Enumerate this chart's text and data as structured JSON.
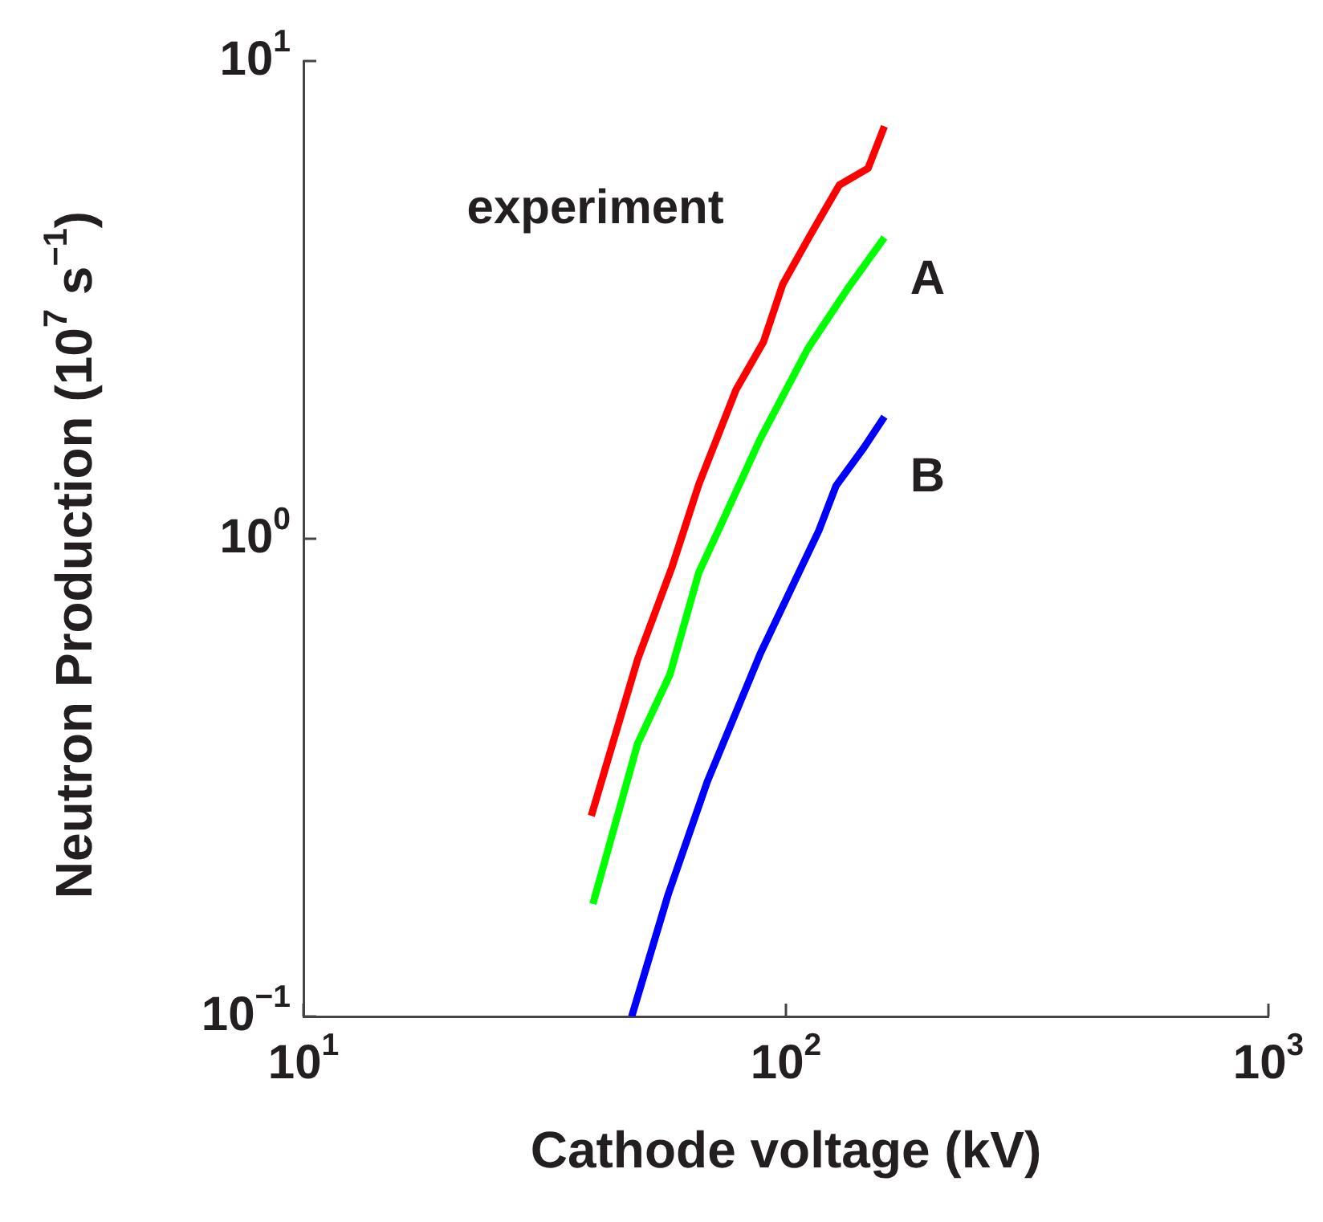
{
  "chart_data": {
    "type": "line",
    "xlabel": "Cathode voltage (kV)",
    "ylabel": "Neutron Production (10$^{7}$ s$^{−1}$)",
    "log": "xy",
    "marker": "none",
    "line_style": "solid",
    "xlim": [
      10,
      1000
    ],
    "ylim": [
      0.1,
      10
    ],
    "xticks": [
      {
        "value": 10,
        "label": "10$^{1}$"
      },
      {
        "value": 100,
        "label": "10$^{2}$"
      },
      {
        "value": 1000,
        "label": "10$^{3}$"
      }
    ],
    "yticks": [
      {
        "value": 0.1,
        "label": "10$^{−1}$"
      },
      {
        "value": 1,
        "label": "10$^{0}$"
      },
      {
        "value": 10,
        "label": "10$^{1}$"
      }
    ],
    "series": [
      {
        "name": "experiment",
        "color": "#ff0000",
        "x": [
          39.5,
          49.3,
          58,
          66,
          78.8,
          89.8,
          98.5,
          112,
          129,
          148,
          160
        ],
        "values": [
          0.263,
          0.56,
          0.87,
          1.3,
          2.05,
          2.58,
          3.41,
          4.3,
          5.5,
          5.96,
          7.3
        ]
      },
      {
        "name": "A",
        "color": "#00ff00",
        "x": [
          39.8,
          49.3,
          57.5,
          66,
          72.4,
          88.5,
          111,
          134,
          160
        ],
        "values": [
          0.172,
          0.373,
          0.52,
          0.85,
          1.04,
          1.62,
          2.5,
          3.33,
          4.27
        ]
      },
      {
        "name": "B",
        "color": "#0000ff",
        "x": [
          47.9,
          57,
          68.7,
          88.5,
          117,
          127,
          145,
          160
        ],
        "values": [
          0.1,
          0.18,
          0.31,
          0.575,
          1.04,
          1.29,
          1.55,
          1.8
        ]
      }
    ]
  }
}
